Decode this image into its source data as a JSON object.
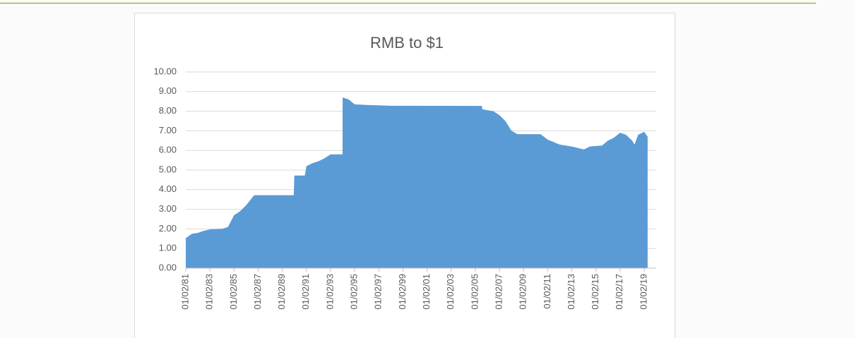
{
  "chart_data": {
    "type": "area",
    "title": "RMB to $1",
    "x": [
      "01/02/81",
      "07/01/81",
      "01/02/82",
      "07/01/82",
      "01/02/83",
      "01/02/84",
      "07/01/84",
      "01/02/85",
      "07/01/85",
      "01/02/86",
      "09/01/86",
      "12/15/89",
      "01/02/90",
      "11/15/90",
      "01/02/91",
      "07/01/91",
      "01/02/92",
      "07/01/92",
      "01/02/93",
      "12/31/93",
      "01/03/94",
      "07/01/94",
      "01/02/95",
      "01/02/96",
      "01/02/98",
      "07/20/05",
      "08/01/05",
      "07/01/06",
      "01/02/07",
      "07/01/07",
      "01/02/08",
      "07/01/08",
      "06/01/10",
      "01/02/11",
      "01/02/12",
      "01/02/13",
      "01/02/14",
      "07/01/14",
      "07/01/15",
      "01/02/16",
      "07/01/16",
      "01/02/17",
      "07/01/17",
      "01/02/18",
      "03/15/18",
      "07/01/18",
      "01/02/19",
      "04/15/19"
    ],
    "values": [
      1.53,
      1.75,
      1.8,
      1.9,
      1.98,
      2.0,
      2.1,
      2.7,
      2.9,
      3.2,
      3.72,
      3.72,
      4.72,
      4.72,
      5.2,
      5.35,
      5.45,
      5.6,
      5.8,
      5.8,
      8.7,
      8.6,
      8.35,
      8.32,
      8.28,
      8.27,
      8.1,
      8.0,
      7.8,
      7.5,
      7.0,
      6.83,
      6.83,
      6.55,
      6.3,
      6.2,
      6.05,
      6.2,
      6.25,
      6.5,
      6.65,
      6.9,
      6.8,
      6.5,
      6.3,
      6.8,
      6.95,
      6.7
    ],
    "color": "#5b9bd5",
    "xlim": [
      "01/02/81",
      "01/01/20"
    ],
    "xticks": [
      "01/02/81",
      "01/02/83",
      "01/02/85",
      "01/02/87",
      "01/02/89",
      "01/02/91",
      "01/02/93",
      "01/02/95",
      "01/02/97",
      "01/02/99",
      "01/02/01",
      "01/02/03",
      "01/02/05",
      "01/02/07",
      "01/02/09",
      "01/02/11",
      "01/02/13",
      "01/02/15",
      "01/02/17",
      "01/02/19"
    ],
    "ylim": [
      0,
      10
    ],
    "yticks": [
      {
        "value": 0,
        "label": "0.00"
      },
      {
        "value": 1,
        "label": "1.00"
      },
      {
        "value": 2,
        "label": "2.00"
      },
      {
        "value": 3,
        "label": "3.00"
      },
      {
        "value": 4,
        "label": "4.00"
      },
      {
        "value": 5,
        "label": "5.00"
      },
      {
        "value": 6,
        "label": "6.00"
      },
      {
        "value": 7,
        "label": "7.00"
      },
      {
        "value": 8,
        "label": "8.00"
      },
      {
        "value": 9,
        "label": "9.00"
      },
      {
        "value": 10,
        "label": "10.00"
      }
    ],
    "grid": true
  }
}
